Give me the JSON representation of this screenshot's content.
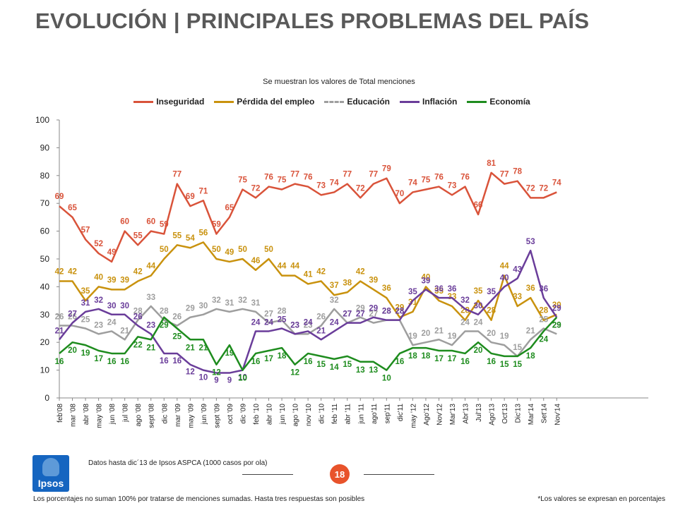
{
  "header": {
    "title": "EVOLUCIÓN | PRINCIPALES PROBLEMAS DEL PAÍS",
    "subtitle": "Se muestran los valores de Total menciones"
  },
  "footer": {
    "source": "Datos hasta dic´13 de Ipsos ASPCA (1000 casos por ola)",
    "page_number": "18",
    "note_left": "Los porcentajes no suman 100% por tratarse de menciones sumadas. Hasta tres respuestas son posibles",
    "note_right": "*Los valores se expresan en porcentajes",
    "logo_text": "Ipsos"
  },
  "colors": {
    "Inseguridad": "#d9533a",
    "Pérdida del empleo": "#c9920e",
    "Educación": "#9e9e9e",
    "Inflación": "#6a3d9a",
    "Economía": "#1e8c1e"
  },
  "chart_data": {
    "type": "line",
    "title": "",
    "ylim": [
      0,
      100
    ],
    "yticks": [
      0,
      10,
      20,
      30,
      40,
      50,
      60,
      70,
      80,
      90,
      100
    ],
    "grid": false,
    "legend_position": "top",
    "categories": [
      "feb'08",
      "mar '08",
      "abr '08",
      "may '08",
      "jun '08",
      "jul '08",
      "ago '08",
      "sept '08",
      "dic '08",
      "mar '09",
      "may '09",
      "jun '09",
      "sept '09",
      "oct '09",
      "dic '09",
      "feb '10",
      "abr '10",
      "jun '10",
      "ago '10",
      "nov '10",
      "dic '10",
      "feb '11",
      "abr '11",
      "jun '11",
      "ago'11",
      "sep'11",
      "dic'11",
      "may '12",
      "Ago'12",
      "Nov'12",
      "Mar'13",
      "Abr'13",
      "Jul'13",
      "Ago'13",
      "Oct'13",
      "Dic'13",
      "Mar'14",
      "Set'14",
      "Nov'14"
    ],
    "xtick_labels": [
      "feb'08",
      "mar '08",
      "abr '08",
      "may '08",
      "jun '08",
      "jul '08",
      "ago '08",
      "sept '08",
      "dic '08",
      "mar '09",
      "may '09",
      "jun '09",
      "sept '09",
      "oct '09",
      "dic '09",
      "feb '10",
      "abr '10",
      "jun '10",
      "ago '10",
      "nov '10",
      "dic '10",
      "feb '11",
      "abr '11",
      "jun '11",
      "ago'11",
      "sep'11",
      "dic'11",
      "may '12",
      "Ago'12",
      "Nov'12",
      "Mar'13",
      "Abr'13",
      "Jul'13",
      "Ago'13",
      "Oct'13",
      "Dic'13",
      "Mar'14",
      "Set'14",
      "Nov'14"
    ],
    "label_slots": 46,
    "series": [
      {
        "name": "Inseguridad",
        "x_slots": [
          0,
          1,
          2,
          3,
          4,
          5,
          6,
          7,
          8,
          9,
          10,
          11,
          12,
          13,
          14,
          15,
          16,
          17,
          18,
          19,
          20,
          21,
          22,
          23,
          24,
          25,
          26,
          27,
          28,
          29,
          30,
          31,
          32,
          33,
          34,
          35,
          36,
          37,
          38
        ],
        "values": [
          69,
          65,
          57,
          52,
          49,
          60,
          55,
          60,
          59,
          77,
          69,
          71,
          59,
          65,
          75,
          72,
          76,
          75,
          77,
          76,
          73,
          74,
          77,
          72,
          77,
          79,
          70,
          74,
          75,
          76,
          73,
          76,
          66,
          81,
          77,
          78,
          72,
          72,
          74
        ],
        "labels": [
          69,
          65,
          57,
          52,
          49,
          60,
          55,
          60,
          59,
          77,
          69,
          71,
          59,
          65,
          75,
          72,
          76,
          75,
          77,
          76,
          73,
          74,
          77,
          72,
          77,
          79,
          70,
          74,
          75,
          76,
          73,
          76,
          66,
          81,
          77,
          78,
          72,
          72,
          74
        ]
      },
      {
        "name": "Pérdida del empleo",
        "x_slots": [
          0,
          1,
          2,
          3,
          4,
          5,
          6,
          7,
          8,
          9,
          10,
          11,
          12,
          13,
          14,
          15,
          16,
          17,
          18,
          19,
          20,
          21,
          22,
          23,
          24,
          25,
          26,
          27,
          28,
          29,
          30,
          31,
          32,
          33,
          34,
          35,
          36,
          37,
          38
        ],
        "values": [
          42,
          42,
          35,
          40,
          39,
          39,
          42,
          44,
          50,
          55,
          54,
          56,
          50,
          49,
          50,
          46,
          50,
          44,
          44,
          41,
          42,
          37,
          38,
          42,
          39,
          36,
          29,
          31,
          40,
          35,
          33,
          28,
          35,
          28,
          44,
          33,
          36,
          28,
          30
        ],
        "labels": [
          42,
          42,
          35,
          40,
          39,
          39,
          42,
          44,
          50,
          55,
          54,
          56,
          50,
          49,
          50,
          46,
          50,
          44,
          44,
          41,
          42,
          37,
          38,
          42,
          39,
          36,
          29,
          31,
          40,
          35,
          33,
          28,
          35,
          28,
          44,
          33,
          36,
          28,
          30
        ]
      },
      {
        "name": "Educación",
        "x_slots": [
          0,
          1,
          2,
          3,
          4,
          5,
          6,
          7,
          8,
          9,
          10,
          11,
          12,
          13,
          14,
          15,
          16,
          17,
          18,
          19,
          20,
          21,
          22,
          23,
          24,
          25,
          26,
          27,
          28,
          29,
          30,
          31,
          32,
          33,
          34,
          35,
          36,
          37,
          38
        ],
        "values": [
          26,
          26,
          25,
          23,
          24,
          21,
          28,
          33,
          28,
          26,
          29,
          30,
          32,
          31,
          32,
          31,
          27,
          28,
          23,
          23,
          26,
          32,
          27,
          29,
          27,
          28,
          28,
          19,
          20,
          21,
          19,
          24,
          24,
          20,
          19,
          15,
          21,
          25,
          23
        ],
        "labels": [
          26,
          26,
          25,
          23,
          24,
          21,
          28,
          33,
          28,
          26,
          29,
          30,
          32,
          31,
          32,
          31,
          27,
          28,
          23,
          23,
          26,
          32,
          27,
          29,
          27,
          28,
          28,
          19,
          20,
          21,
          19,
          24,
          24,
          20,
          19,
          15,
          21,
          25,
          23
        ]
      },
      {
        "name": "Inflación",
        "x_slots": [
          0,
          1,
          2,
          3,
          4,
          5,
          6,
          7,
          8,
          9,
          10,
          11,
          12,
          13,
          14,
          15,
          16,
          17,
          18,
          19,
          20,
          21,
          22,
          23,
          24,
          25,
          26,
          27,
          28,
          29,
          30,
          31,
          32,
          33,
          34,
          35,
          36,
          37,
          38
        ],
        "values": [
          21,
          27,
          31,
          32,
          30,
          30,
          26,
          23,
          16,
          16,
          12,
          10,
          9,
          9,
          10,
          24,
          24,
          25,
          23,
          24,
          21,
          24,
          27,
          27,
          29,
          28,
          28,
          35,
          39,
          36,
          36,
          32,
          30,
          35,
          40,
          43,
          53,
          36,
          29
        ],
        "labels": [
          21,
          27,
          31,
          32,
          30,
          30,
          26,
          23,
          16,
          16,
          12,
          10,
          9,
          9,
          10,
          24,
          24,
          25,
          23,
          24,
          21,
          24,
          27,
          27,
          29,
          28,
          28,
          35,
          39,
          36,
          36,
          32,
          30,
          35,
          40,
          43,
          53,
          36,
          29
        ]
      },
      {
        "name": "Economía",
        "x_slots": [
          0,
          1,
          2,
          3,
          4,
          5,
          6,
          7,
          8,
          9,
          10,
          11,
          12,
          13,
          14,
          15,
          16,
          17,
          18,
          19,
          20,
          21,
          22,
          23,
          24,
          25,
          26,
          27,
          28,
          29,
          30,
          31,
          32,
          33,
          34,
          35,
          36,
          37,
          38
        ],
        "values": [
          16,
          20,
          19,
          17,
          16,
          16,
          22,
          21,
          29,
          25,
          21,
          21,
          12,
          19,
          10,
          16,
          17,
          18,
          12,
          16,
          15,
          14,
          15,
          13,
          13,
          10,
          16,
          18,
          18,
          17,
          17,
          16,
          20,
          16,
          15,
          15,
          18,
          24,
          29
        ],
        "labels": [
          16,
          20,
          19,
          17,
          16,
          16,
          22,
          21,
          29,
          25,
          21,
          21,
          12,
          19,
          10,
          16,
          17,
          18,
          12,
          16,
          15,
          14,
          15,
          13,
          13,
          10,
          16,
          18,
          18,
          17,
          17,
          16,
          20,
          16,
          15,
          15,
          18,
          24,
          29
        ]
      }
    ]
  }
}
